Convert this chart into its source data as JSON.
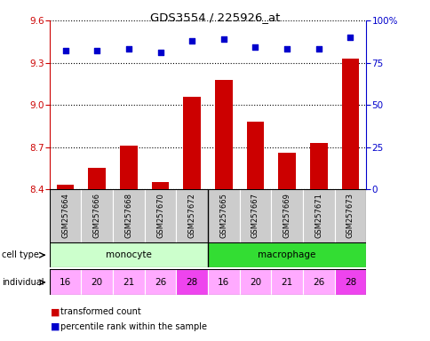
{
  "title": "GDS3554 / 225926_at",
  "samples": [
    "GSM257664",
    "GSM257666",
    "GSM257668",
    "GSM257670",
    "GSM257672",
    "GSM257665",
    "GSM257667",
    "GSM257669",
    "GSM257671",
    "GSM257673"
  ],
  "bar_values": [
    8.43,
    8.55,
    8.71,
    8.45,
    9.06,
    9.18,
    8.88,
    8.66,
    8.73,
    9.33
  ],
  "dot_values": [
    82,
    82,
    83,
    81,
    88,
    89,
    84,
    83,
    83,
    90
  ],
  "ylim_left": [
    8.4,
    9.6
  ],
  "ylim_right": [
    0,
    100
  ],
  "yticks_left": [
    8.4,
    8.7,
    9.0,
    9.3,
    9.6
  ],
  "yticks_right": [
    0,
    25,
    50,
    75,
    100
  ],
  "bar_color": "#cc0000",
  "dot_color": "#0000cc",
  "cell_types": [
    {
      "label": "monocyte",
      "start": 0,
      "end": 5,
      "color": "#ccffcc"
    },
    {
      "label": "macrophage",
      "start": 5,
      "end": 10,
      "color": "#33dd33"
    }
  ],
  "individuals": [
    16,
    20,
    21,
    26,
    28,
    16,
    20,
    21,
    26,
    28
  ],
  "indiv_colors": [
    "#ffaaff",
    "#ffaaff",
    "#ffaaff",
    "#ffaaff",
    "#ee44ee",
    "#ffaaff",
    "#ffaaff",
    "#ffaaff",
    "#ffaaff",
    "#ee44ee"
  ],
  "tick_label_color_left": "#cc0000",
  "tick_label_color_right": "#0000cc",
  "grid_color": "#000000",
  "sample_box_color": "#cccccc",
  "bar_baseline": 8.4
}
